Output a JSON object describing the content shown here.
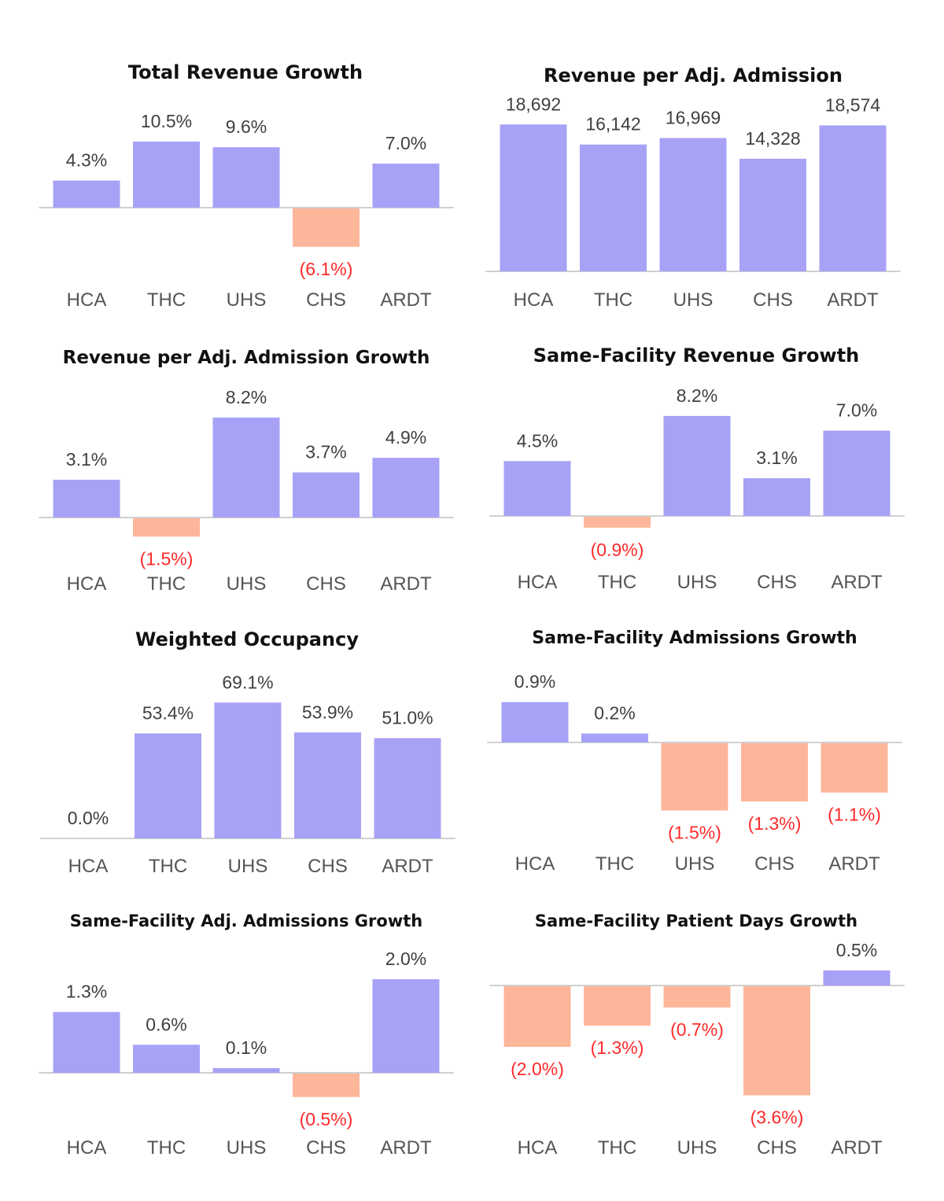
{
  "colors": {
    "positive": "#a7a2f6",
    "negative": "#fdb69a",
    "positive_label": "#404040",
    "negative_label": "#ff2a2a",
    "axis": "#d0d0d0"
  },
  "chart_data": [
    {
      "type": "bar",
      "title": "Total Revenue Growth",
      "categories": [
        "HCA",
        "THC",
        "UHS",
        "CHS",
        "ARDT"
      ],
      "values": [
        4.3,
        10.5,
        9.6,
        -6.1,
        7.0
      ],
      "labels": [
        "4.3%",
        "10.5%",
        "9.6%",
        "(6.1%)",
        "7.0%"
      ],
      "unit": "%",
      "xlabel": "",
      "ylabel": ""
    },
    {
      "type": "bar",
      "title": "Revenue per Adj. Admission",
      "categories": [
        "HCA",
        "THC",
        "UHS",
        "CHS",
        "ARDT"
      ],
      "values": [
        18692,
        16142,
        16969,
        14328,
        18574
      ],
      "labels": [
        "18,692",
        "16,142",
        "16,969",
        "14,328",
        "18,574"
      ],
      "unit": "$",
      "xlabel": "",
      "ylabel": ""
    },
    {
      "type": "bar",
      "title": "Revenue per Adj. Admission Growth",
      "categories": [
        "HCA",
        "THC",
        "UHS",
        "CHS",
        "ARDT"
      ],
      "values": [
        3.1,
        -1.5,
        8.2,
        3.7,
        4.9
      ],
      "labels": [
        "3.1%",
        "(1.5%)",
        "8.2%",
        "3.7%",
        "4.9%"
      ],
      "unit": "%",
      "xlabel": "",
      "ylabel": ""
    },
    {
      "type": "bar",
      "title": "Same-Facility Revenue Growth",
      "categories": [
        "HCA",
        "THC",
        "UHS",
        "CHS",
        "ARDT"
      ],
      "values": [
        4.5,
        -0.9,
        8.2,
        3.1,
        7.0
      ],
      "labels": [
        "4.5%",
        "(0.9%)",
        "8.2%",
        "3.1%",
        "7.0%"
      ],
      "unit": "%",
      "xlabel": "",
      "ylabel": ""
    },
    {
      "type": "bar",
      "title": "Weighted Occupancy",
      "categories": [
        "HCA",
        "THC",
        "UHS",
        "CHS",
        "ARDT"
      ],
      "values": [
        0.0,
        53.4,
        69.1,
        53.9,
        51.0
      ],
      "labels": [
        "0.0%",
        "53.4%",
        "69.1%",
        "53.9%",
        "51.0%"
      ],
      "unit": "%",
      "xlabel": "",
      "ylabel": ""
    },
    {
      "type": "bar",
      "title": "Same-Facility Admissions Growth",
      "categories": [
        "HCA",
        "THC",
        "UHS",
        "CHS",
        "ARDT"
      ],
      "values": [
        0.9,
        0.2,
        -1.5,
        -1.3,
        -1.1
      ],
      "labels": [
        "0.9%",
        "0.2%",
        "(1.5%)",
        "(1.3%)",
        "(1.1%)"
      ],
      "unit": "%",
      "xlabel": "",
      "ylabel": ""
    },
    {
      "type": "bar",
      "title": "Same-Facility Adj. Admissions Growth",
      "categories": [
        "HCA",
        "THC",
        "UHS",
        "CHS",
        "ARDT"
      ],
      "values": [
        1.3,
        0.6,
        0.1,
        -0.5,
        2.0
      ],
      "labels": [
        "1.3%",
        "0.6%",
        "0.1%",
        "(0.5%)",
        "2.0%"
      ],
      "unit": "%",
      "xlabel": "",
      "ylabel": ""
    },
    {
      "type": "bar",
      "title": "Same-Facility Patient Days Growth",
      "categories": [
        "HCA",
        "THC",
        "UHS",
        "CHS",
        "ARDT"
      ],
      "values": [
        -2.0,
        -1.3,
        -0.7,
        -3.6,
        0.5
      ],
      "labels": [
        "(2.0%)",
        "(1.3%)",
        "(0.7%)",
        "(3.6%)",
        "0.5%"
      ],
      "unit": "%",
      "xlabel": "",
      "ylabel": ""
    }
  ]
}
